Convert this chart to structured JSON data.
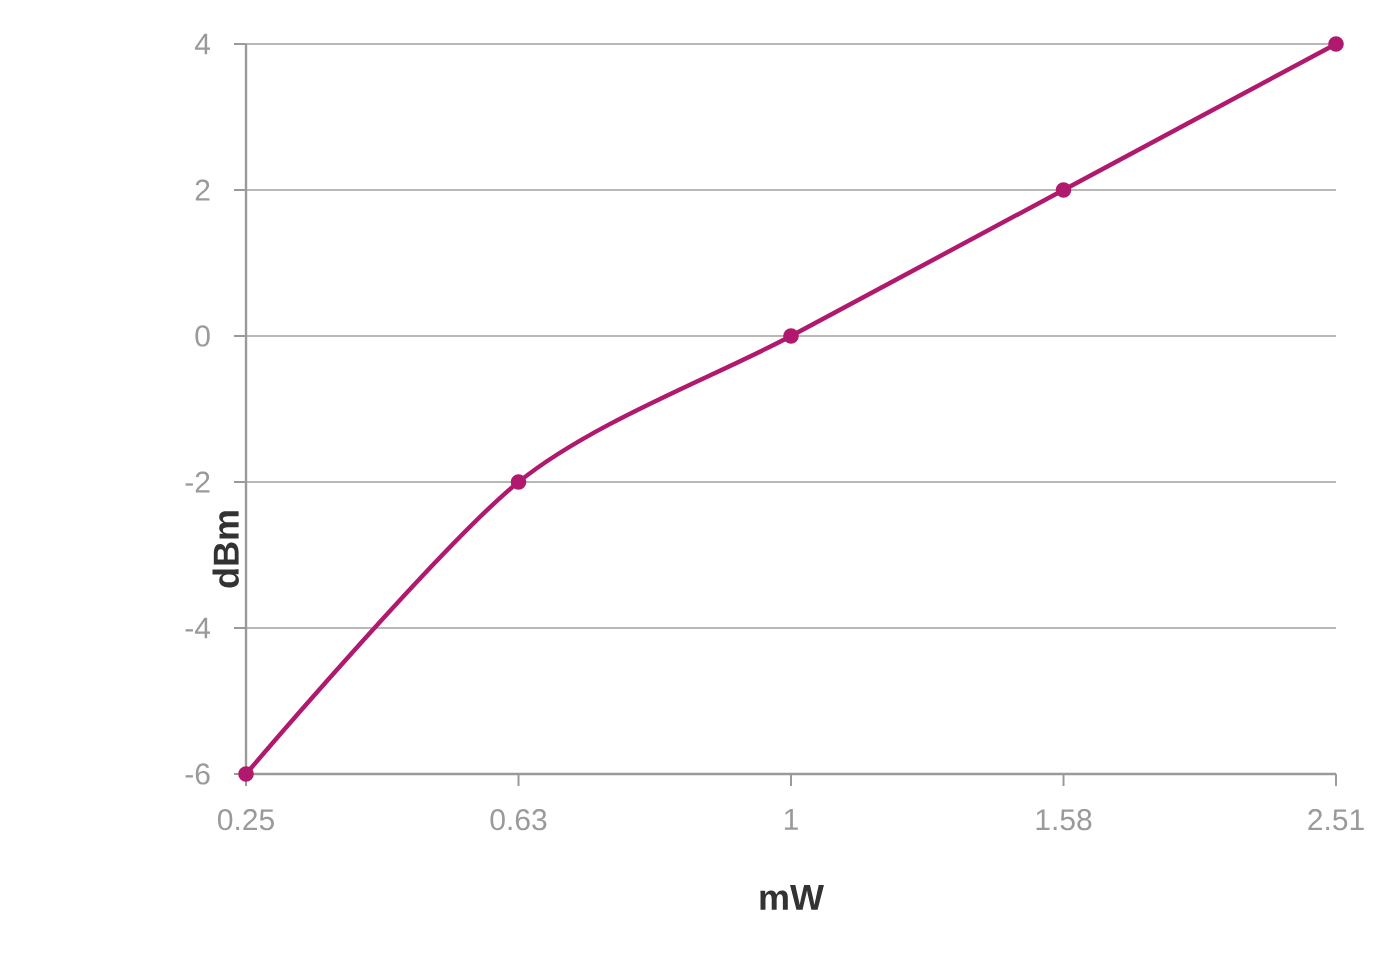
{
  "chart_data": {
    "type": "line",
    "xlabel": "mW",
    "ylabel": "dBm",
    "categories": [
      "0.25",
      "0.63",
      "1",
      "1.58",
      "2.51"
    ],
    "series": [
      {
        "color": "#b0196e",
        "values": [
          -6,
          -2,
          0,
          2,
          4
        ]
      }
    ],
    "ylim": [
      -6,
      4
    ],
    "yticks": [
      -6,
      -4,
      -2,
      0,
      2,
      4
    ],
    "grid": "y",
    "marker": "circle",
    "line_style": "solid"
  }
}
